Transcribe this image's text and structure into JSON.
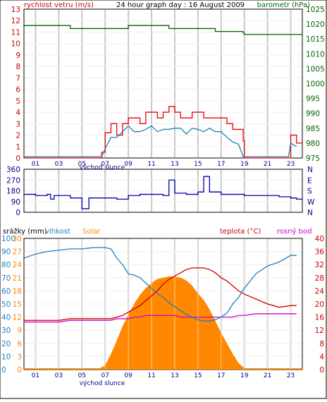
{
  "colors": {
    "wind": "#ee0000",
    "gust": "#ee0000",
    "wind_avg": "#1f7fbf",
    "pressure": "#006600",
    "direction": "#0000aa",
    "humidity": "#1f7fbf",
    "solar": "#ff8800",
    "temperature": "#cc0000",
    "dewpoint": "#cc00cc",
    "grid": "#c8c8c8",
    "axis_text": "#000080"
  },
  "chart_data": [
    {
      "type": "line",
      "title": "24 hour graph day : 16 August 2009",
      "ylabel_left": "rychlost vetru (m/s)",
      "ylabel_right": "barometr (hPa)",
      "ylim_left": [
        0,
        13
      ],
      "ylim_right": [
        975,
        1025
      ],
      "y_ticks_left": [
        "0",
        "1",
        "2",
        "3",
        "4",
        "5",
        "6",
        "7",
        "8",
        "9",
        "10",
        "11",
        "12",
        "13"
      ],
      "y_ticks_right": [
        "975",
        "980",
        "985",
        "990",
        "995",
        "1000",
        "1005",
        "1010",
        "1015",
        "1020",
        "1025"
      ],
      "x_ticks": [
        "01",
        "03",
        "05",
        "07",
        "09",
        "11",
        "13",
        "15",
        "17",
        "19",
        "21",
        "23"
      ],
      "x_annotation": "východ slunce",
      "x": [
        0,
        1,
        2,
        3,
        4,
        5,
        6,
        6.7,
        7,
        7.5,
        8,
        8.5,
        9,
        9.5,
        10,
        10.5,
        11,
        11.5,
        12,
        12.5,
        13,
        13.5,
        14,
        14.5,
        15,
        15.5,
        16,
        16.5,
        17,
        17.5,
        18,
        18.5,
        18.9,
        19,
        20,
        21,
        22,
        22.8,
        23,
        23.5
      ],
      "series": [
        {
          "name": "wind gust",
          "axis": "left",
          "values": [
            0,
            0,
            0,
            0,
            0,
            0,
            0,
            0.5,
            2.2,
            3,
            2,
            3,
            3.5,
            3.5,
            3,
            4,
            4,
            3.5,
            4,
            4.5,
            4,
            3.5,
            3.5,
            4,
            4,
            3.5,
            3.5,
            3.5,
            3.5,
            3,
            2.5,
            2.5,
            1.5,
            0,
            0,
            0,
            0,
            0,
            2,
            1.3
          ]
        },
        {
          "name": "wind average",
          "axis": "left",
          "values": [
            0.1,
            0.1,
            0.1,
            0.1,
            0.1,
            0.1,
            0.1,
            0.1,
            0.8,
            1.8,
            1.8,
            2.3,
            2.8,
            2.3,
            2.3,
            2.5,
            2.8,
            2.3,
            2.5,
            2.5,
            2.6,
            2.6,
            2.1,
            2.6,
            2.5,
            2.3,
            2.6,
            2.3,
            2.3,
            1.8,
            1.4,
            1.2,
            0.1,
            0.1,
            0.1,
            0.1,
            0.1,
            0.1,
            1.3,
            1
          ]
        },
        {
          "name": "pressure",
          "axis": "right",
          "values": [
            1019.5,
            1019.5,
            1019.5,
            1019.5,
            1018.5,
            1018.5,
            1018.5,
            1018.5,
            1018.5,
            1018.5,
            1018.5,
            1018.5,
            1019.5,
            1019.5,
            1019.5,
            1019.5,
            1019.5,
            1019.5,
            1019.5,
            1018.5,
            1018.5,
            1018.5,
            1018.5,
            1018.5,
            1018.5,
            1018.5,
            1018.5,
            1017.5,
            1017.5,
            1017.5,
            1017.5,
            1017.5,
            1017,
            1016.5,
            1016.5,
            1016.5,
            1016.5,
            1016.5,
            1016.5,
            1016.5
          ]
        }
      ]
    },
    {
      "type": "line",
      "y_ticks_left": [
        "0",
        "90",
        "180",
        "270",
        "360"
      ],
      "ylim_left": [
        0,
        360
      ],
      "y_ticks_right": [
        "N",
        "W",
        "S",
        "E",
        "N"
      ],
      "series": [
        {
          "name": "wind direction",
          "x": [
            0,
            1,
            2,
            2.3,
            2.6,
            3,
            4,
            4.5,
            5,
            5.6,
            6,
            7,
            8,
            9,
            10,
            11,
            12,
            12.5,
            13,
            14,
            15,
            15.5,
            16,
            17,
            18,
            19,
            20,
            21,
            22,
            23,
            23.5
          ],
          "values": [
            150,
            140,
            150,
            110,
            140,
            140,
            120,
            120,
            30,
            120,
            120,
            120,
            110,
            140,
            150,
            150,
            140,
            270,
            160,
            150,
            170,
            300,
            170,
            150,
            150,
            140,
            140,
            140,
            130,
            120,
            110
          ]
        }
      ]
    },
    {
      "type": "area",
      "legend": [
        "srážky (mm)",
        "vlhkost",
        "Solar",
        "teplota (°C)",
        "rosný bod"
      ],
      "y_ticks_left_humidity": [
        "0",
        "10",
        "20",
        "30",
        "40",
        "50",
        "60",
        "70",
        "80",
        "90",
        "100"
      ],
      "y_ticks_left_rain": [
        "0",
        "3",
        "6",
        "9",
        "12",
        "15",
        "18",
        "21",
        "24",
        "27",
        "30"
      ],
      "y_ticks_right": [
        "0",
        "4",
        "8",
        "12",
        "16",
        "20",
        "24",
        "28",
        "32",
        "36",
        "40"
      ],
      "ylim_humidity": [
        0,
        100
      ],
      "ylim_temperature": [
        0,
        40
      ],
      "x_ticks": [
        "01",
        "03",
        "05",
        "07",
        "09",
        "11",
        "13",
        "15",
        "17",
        "19",
        "21",
        "23"
      ],
      "x_annotation": "východ slunce",
      "x": [
        0,
        1,
        2,
        3,
        4,
        5,
        6,
        6.5,
        7,
        7.5,
        8,
        8.5,
        9,
        9.5,
        10,
        10.5,
        11,
        11.5,
        12,
        12.5,
        13,
        13.5,
        14,
        14.5,
        15,
        15.5,
        16,
        16.5,
        17,
        17.5,
        18,
        18.5,
        19,
        20,
        21,
        22,
        23,
        23.5
      ],
      "series": [
        {
          "name": "vlhkost",
          "values": [
            85,
            88,
            90,
            91,
            92,
            92,
            93,
            93,
            93,
            92,
            85,
            80,
            73,
            72,
            70,
            66,
            62,
            58,
            55,
            51,
            48,
            45,
            42,
            40,
            38,
            37,
            37,
            38,
            40,
            43,
            50,
            55,
            62,
            73,
            79,
            82,
            87,
            87
          ]
        },
        {
          "name": "Solar",
          "values": [
            1,
            1,
            1,
            1,
            1,
            1,
            1,
            1,
            3,
            12,
            22,
            33,
            42,
            50,
            57,
            62,
            66,
            69,
            70,
            71,
            71,
            70,
            68,
            64,
            58,
            53,
            46,
            37,
            28,
            20,
            12,
            5,
            1,
            1,
            1,
            1,
            1,
            1
          ]
        },
        {
          "name": "teplota (°C)",
          "values": [
            15,
            15,
            15,
            15,
            15.5,
            15.5,
            15.5,
            15.5,
            15.5,
            15.5,
            16,
            16.5,
            17.5,
            18.5,
            19.5,
            21,
            22.5,
            24,
            26,
            27.5,
            28.5,
            29.5,
            30.5,
            31,
            31,
            31,
            30.5,
            29.5,
            28,
            27,
            25.5,
            24,
            23,
            21.5,
            20,
            19,
            19.5,
            19.5
          ]
        },
        {
          "name": "rosný bod",
          "values": [
            14.5,
            14.5,
            14.5,
            14.5,
            15,
            15,
            15,
            15,
            15,
            15,
            15.5,
            15.5,
            15.5,
            16,
            16,
            16.5,
            16.5,
            16.5,
            16.5,
            16.5,
            16.5,
            16,
            16,
            16,
            16,
            16,
            16,
            16,
            16,
            16,
            16,
            16.5,
            16.5,
            17,
            17,
            17,
            17,
            17
          ]
        }
      ]
    }
  ]
}
